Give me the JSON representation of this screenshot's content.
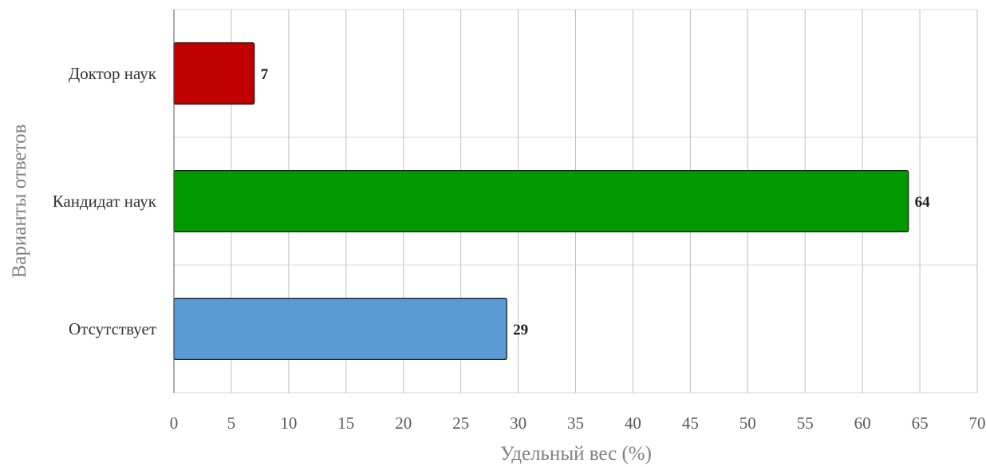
{
  "chart_data": {
    "type": "bar",
    "orientation": "horizontal",
    "categories": [
      "Доктор наук",
      "Кандидат наук",
      "Отсутствует"
    ],
    "values": [
      7,
      64,
      29
    ],
    "data_labels": [
      "7",
      "64",
      "29"
    ],
    "colors": [
      "#c00000",
      "#009900",
      "#5b9bd5"
    ],
    "xlabel": "Удельный вес (%)",
    "ylabel": "Варианты ответов",
    "xlim": [
      0,
      70
    ],
    "xticks": [
      0,
      5,
      10,
      15,
      20,
      25,
      30,
      35,
      40,
      45,
      50,
      55,
      60,
      65,
      70
    ],
    "xtick_labels": [
      "0",
      "5",
      "10",
      "15",
      "20",
      "25",
      "30",
      "35",
      "40",
      "45",
      "50",
      "55",
      "60",
      "65",
      "70"
    ],
    "grid": true,
    "legend": false
  }
}
